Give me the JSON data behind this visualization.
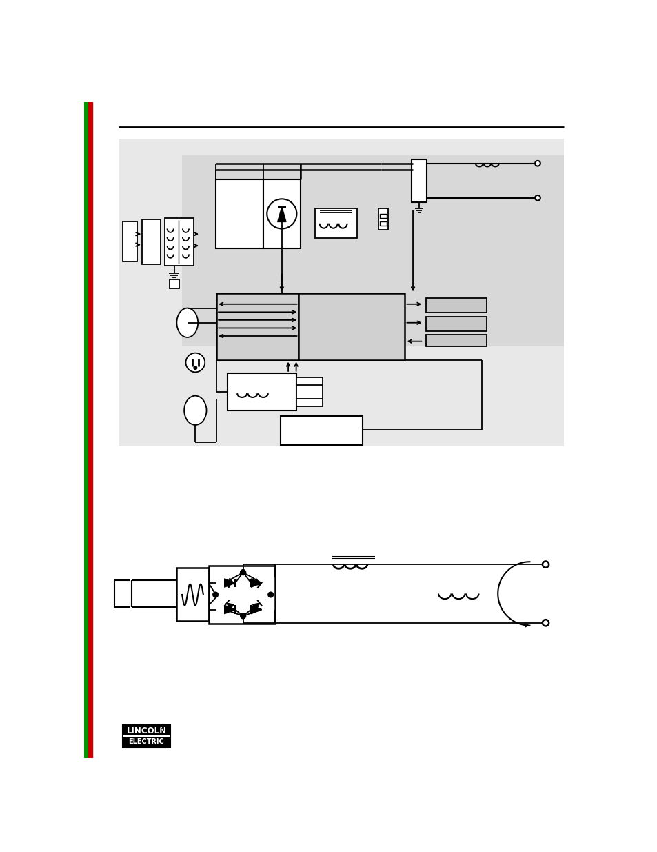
{
  "page_bg": "#ffffff",
  "diagram_bg": "#e0e0e0",
  "diagram_bg2": "#ebebeb",
  "line_color": "#000000",
  "border_left_red": "#cc0000",
  "border_left_green": "#009900",
  "gray_panel": "#d8d8d8"
}
